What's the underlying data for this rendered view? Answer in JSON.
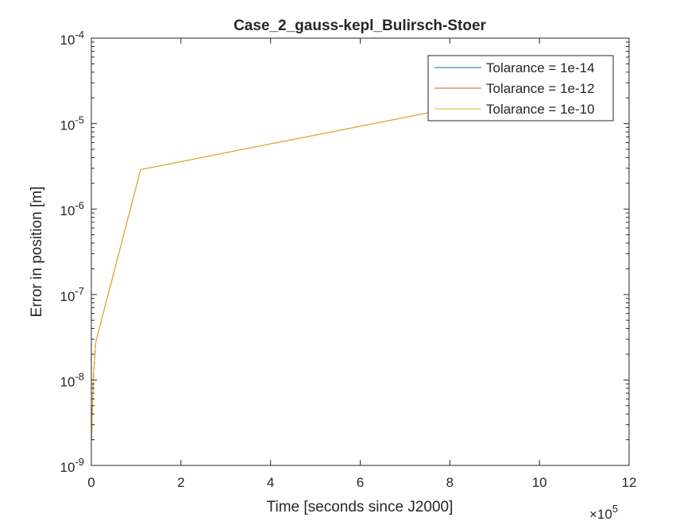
{
  "chart_data": {
    "type": "line",
    "title": "Case_2_gauss-kepl_Bulirsch-Stoer",
    "xlabel": "Time [seconds since J2000]",
    "ylabel": "Error in position [m]",
    "x_exponent_base": "×10",
    "x_exponent_power": "5",
    "x_scale_factor": 100000,
    "xlim": [
      0,
      1200000
    ],
    "ylim": [
      1e-09,
      0.0001
    ],
    "yscale": "log",
    "x_ticks": [
      0,
      200000,
      400000,
      600000,
      800000,
      1000000,
      1200000
    ],
    "x_tick_labels": [
      "0",
      "2",
      "4",
      "6",
      "8",
      "10",
      "12"
    ],
    "y_ticks": [
      {
        "value": 1e-09,
        "base": "10",
        "exp": "-9"
      },
      {
        "value": 1e-08,
        "base": "10",
        "exp": "-8"
      },
      {
        "value": 1e-07,
        "base": "10",
        "exp": "-7"
      },
      {
        "value": 1e-06,
        "base": "10",
        "exp": "-6"
      },
      {
        "value": 1e-05,
        "base": "10",
        "exp": "-5"
      },
      {
        "value": 0.0001,
        "base": "10",
        "exp": "-4"
      }
    ],
    "grid": false,
    "legend_position": "top-right",
    "series": [
      {
        "name": "Tolarance = 1e-14",
        "color": "#0072BD",
        "x": [
          0,
          1000,
          2000,
          5000,
          10000,
          110000,
          800000
        ],
        "y": [
          1.9e-09,
          2.5e-09,
          4e-09,
          1.2e-08,
          2.8e-08,
          2.9e-06,
          1.5e-05
        ]
      },
      {
        "name": "Tolarance = 1e-12",
        "color": "#D95319",
        "x": [
          0,
          1000,
          2000,
          5000,
          10000,
          110000,
          800000
        ],
        "y": [
          1.9e-09,
          2.5e-09,
          4e-09,
          1.2e-08,
          2.8e-08,
          2.9e-06,
          1.5e-05
        ]
      },
      {
        "name": "Tolarance = 1e-10",
        "color": "#EDB120",
        "x": [
          0,
          1000,
          2000,
          5000,
          10000,
          110000,
          800000
        ],
        "y": [
          1.9e-09,
          2.5e-09,
          4e-09,
          1.2e-08,
          2.8e-08,
          2.9e-06,
          1.5e-05
        ]
      }
    ]
  }
}
